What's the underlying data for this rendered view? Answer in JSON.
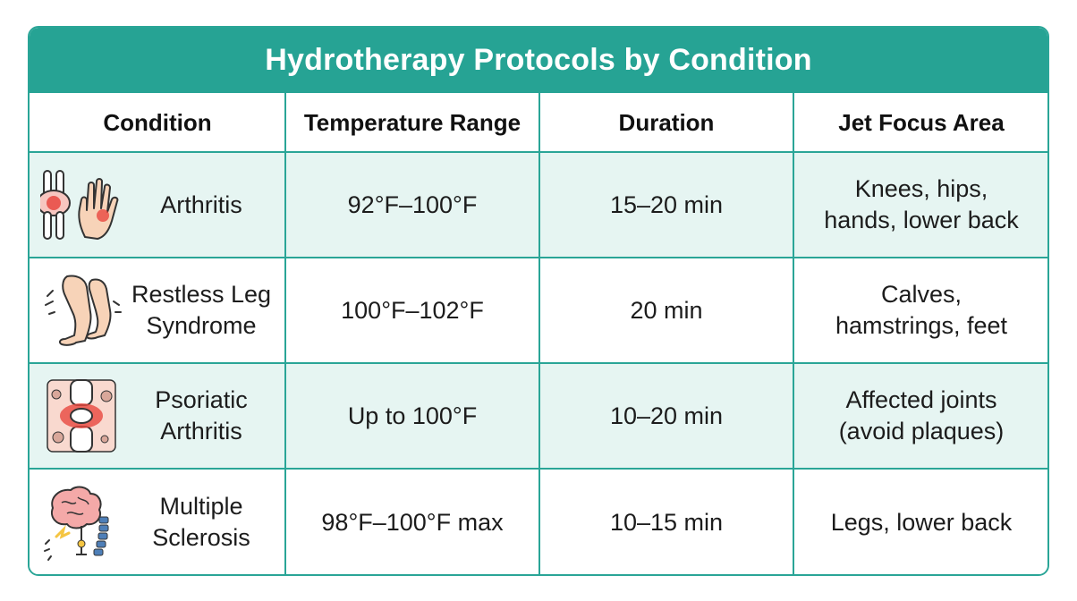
{
  "title": "Hydrotherapy Protocols by Condition",
  "headers": {
    "condition": "Condition",
    "temperature": "Temperature Range",
    "duration": "Duration",
    "jet_focus": "Jet Focus Area"
  },
  "rows": [
    {
      "condition": "Arthritis",
      "icon": "joint-and-hand-icon",
      "temperature": "92°F–100°F",
      "duration": "15–20 min",
      "jet_focus": "Knees, hips,\nhands, lower back"
    },
    {
      "condition": "Restless Leg\nSyndrome",
      "icon": "legs-icon",
      "temperature": "100°F–102°F",
      "duration": "20 min",
      "jet_focus": "Calves,\nhamstrings, feet"
    },
    {
      "condition": "Psoriatic\nArthritis",
      "icon": "inflamed-joint-icon",
      "temperature": "Up to 100°F",
      "duration": "10–20 min",
      "jet_focus": "Affected joints\n(avoid plaques)"
    },
    {
      "condition": "Multiple\nSclerosis",
      "icon": "brain-spine-icon",
      "temperature": "98°F–100°F max",
      "duration": "10–15 min",
      "jet_focus": "Legs, lower back"
    }
  ],
  "colors": {
    "accent": "#26a394",
    "row_tint": "#e6f5f2",
    "inflammation": "#e8473f"
  }
}
